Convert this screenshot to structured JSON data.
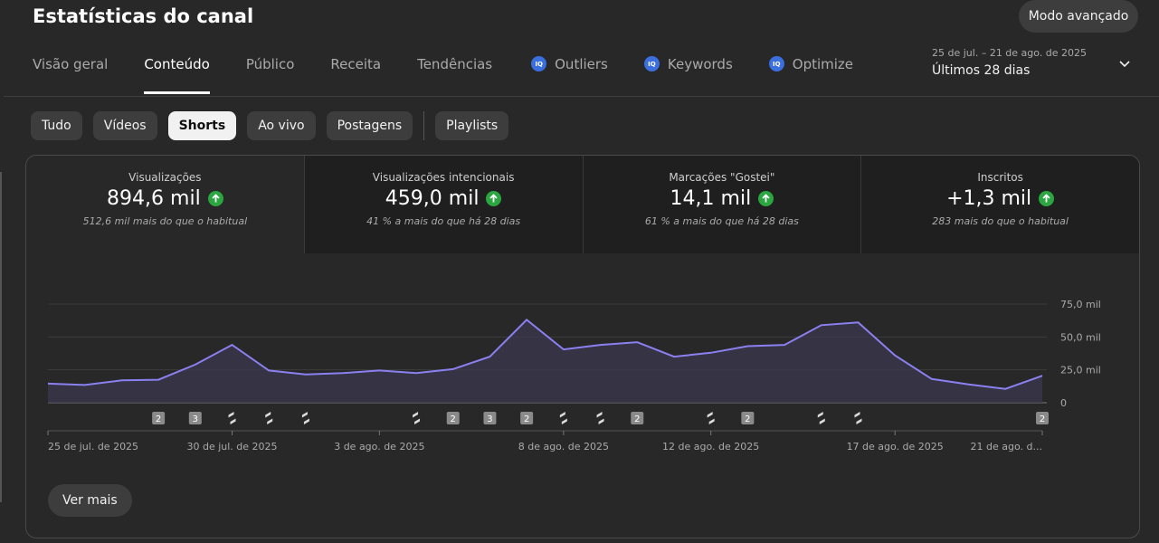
{
  "header": {
    "title": "Estatísticas do canal",
    "advanced_button": "Modo avançado"
  },
  "tabs": [
    {
      "label": "Visão geral"
    },
    {
      "label": "Conteúdo",
      "active": true
    },
    {
      "label": "Público"
    },
    {
      "label": "Receita"
    },
    {
      "label": "Tendências"
    },
    {
      "label": "Outliers",
      "icon": "vidiq-icon"
    },
    {
      "label": "Keywords",
      "icon": "vidiq-icon"
    },
    {
      "label": "Optimize",
      "icon": "vidiq-icon"
    }
  ],
  "date_picker": {
    "range": "25 de jul. – 21 de ago. de 2025",
    "period": "Últimos 28 dias"
  },
  "chips": [
    {
      "label": "Tudo"
    },
    {
      "label": "Vídeos"
    },
    {
      "label": "Shorts",
      "active": true
    },
    {
      "label": "Ao vivo"
    },
    {
      "label": "Postagens"
    },
    {
      "label": "Playlists"
    }
  ],
  "metrics": [
    {
      "label": "Visualizações",
      "value": "894,6 mil",
      "note": "512,6 mil mais do que o habitual"
    },
    {
      "label": "Visualizações intencionais",
      "value": "459,0 mil",
      "note": "41 % a mais do que há 28 dias"
    },
    {
      "label": "Marcações \"Gostei\"",
      "value": "14,1 mil",
      "note": "61 % a mais do que há 28 dias"
    },
    {
      "label": "Inscritos",
      "value": "+1,3 mil",
      "note": "283 mais do que o habitual"
    }
  ],
  "chart_data": {
    "type": "area",
    "x": [
      "25 jul",
      "26 jul",
      "27 jul",
      "28 jul",
      "29 jul",
      "30 jul",
      "31 jul",
      "1 ago",
      "2 ago",
      "3 ago",
      "4 ago",
      "5 ago",
      "6 ago",
      "7 ago",
      "8 ago",
      "9 ago",
      "10 ago",
      "11 ago",
      "12 ago",
      "13 ago",
      "14 ago",
      "15 ago",
      "16 ago",
      "17 ago",
      "18 ago",
      "19 ago",
      "20 ago",
      "21 ago"
    ],
    "values": [
      14.5,
      13.5,
      17,
      17.5,
      29,
      44,
      24.5,
      21.5,
      22.5,
      24.5,
      22.5,
      25.5,
      35,
      63,
      40.5,
      44,
      46,
      35,
      38,
      43,
      44,
      59,
      61,
      36,
      18,
      14,
      10.5,
      20.5
    ],
    "y_ticks": [
      "75,0 mil",
      "50,0 mil",
      "25,0 mil",
      "0"
    ],
    "ylim": [
      0,
      75
    ],
    "x_tick_labels": [
      "25 de jul. de 2025",
      "30 de jul. de 2025",
      "3 de ago. de 2025",
      "8 de ago. de 2025",
      "12 de ago. de 2025",
      "17 de ago. de 2025",
      "21 de ago. d..."
    ],
    "line_color": "#8b80f0",
    "fill_color": "#3a3850",
    "grid": true
  },
  "publish_markers": [
    {
      "day": 3,
      "kind": "count",
      "label": "2"
    },
    {
      "day": 4,
      "kind": "count",
      "label": "3"
    },
    {
      "day": 5,
      "kind": "shorts"
    },
    {
      "day": 6,
      "kind": "shorts"
    },
    {
      "day": 7,
      "kind": "shorts"
    },
    {
      "day": 10,
      "kind": "shorts"
    },
    {
      "day": 11,
      "kind": "count",
      "label": "2"
    },
    {
      "day": 12,
      "kind": "count",
      "label": "3"
    },
    {
      "day": 13,
      "kind": "count",
      "label": "2"
    },
    {
      "day": 14,
      "kind": "shorts"
    },
    {
      "day": 15,
      "kind": "shorts"
    },
    {
      "day": 16,
      "kind": "count",
      "label": "2"
    },
    {
      "day": 18,
      "kind": "shorts"
    },
    {
      "day": 19,
      "kind": "count",
      "label": "2"
    },
    {
      "day": 21,
      "kind": "shorts"
    },
    {
      "day": 22,
      "kind": "shorts"
    },
    {
      "day": 27,
      "kind": "count",
      "label": "2"
    }
  ],
  "more_button": "Ver mais"
}
